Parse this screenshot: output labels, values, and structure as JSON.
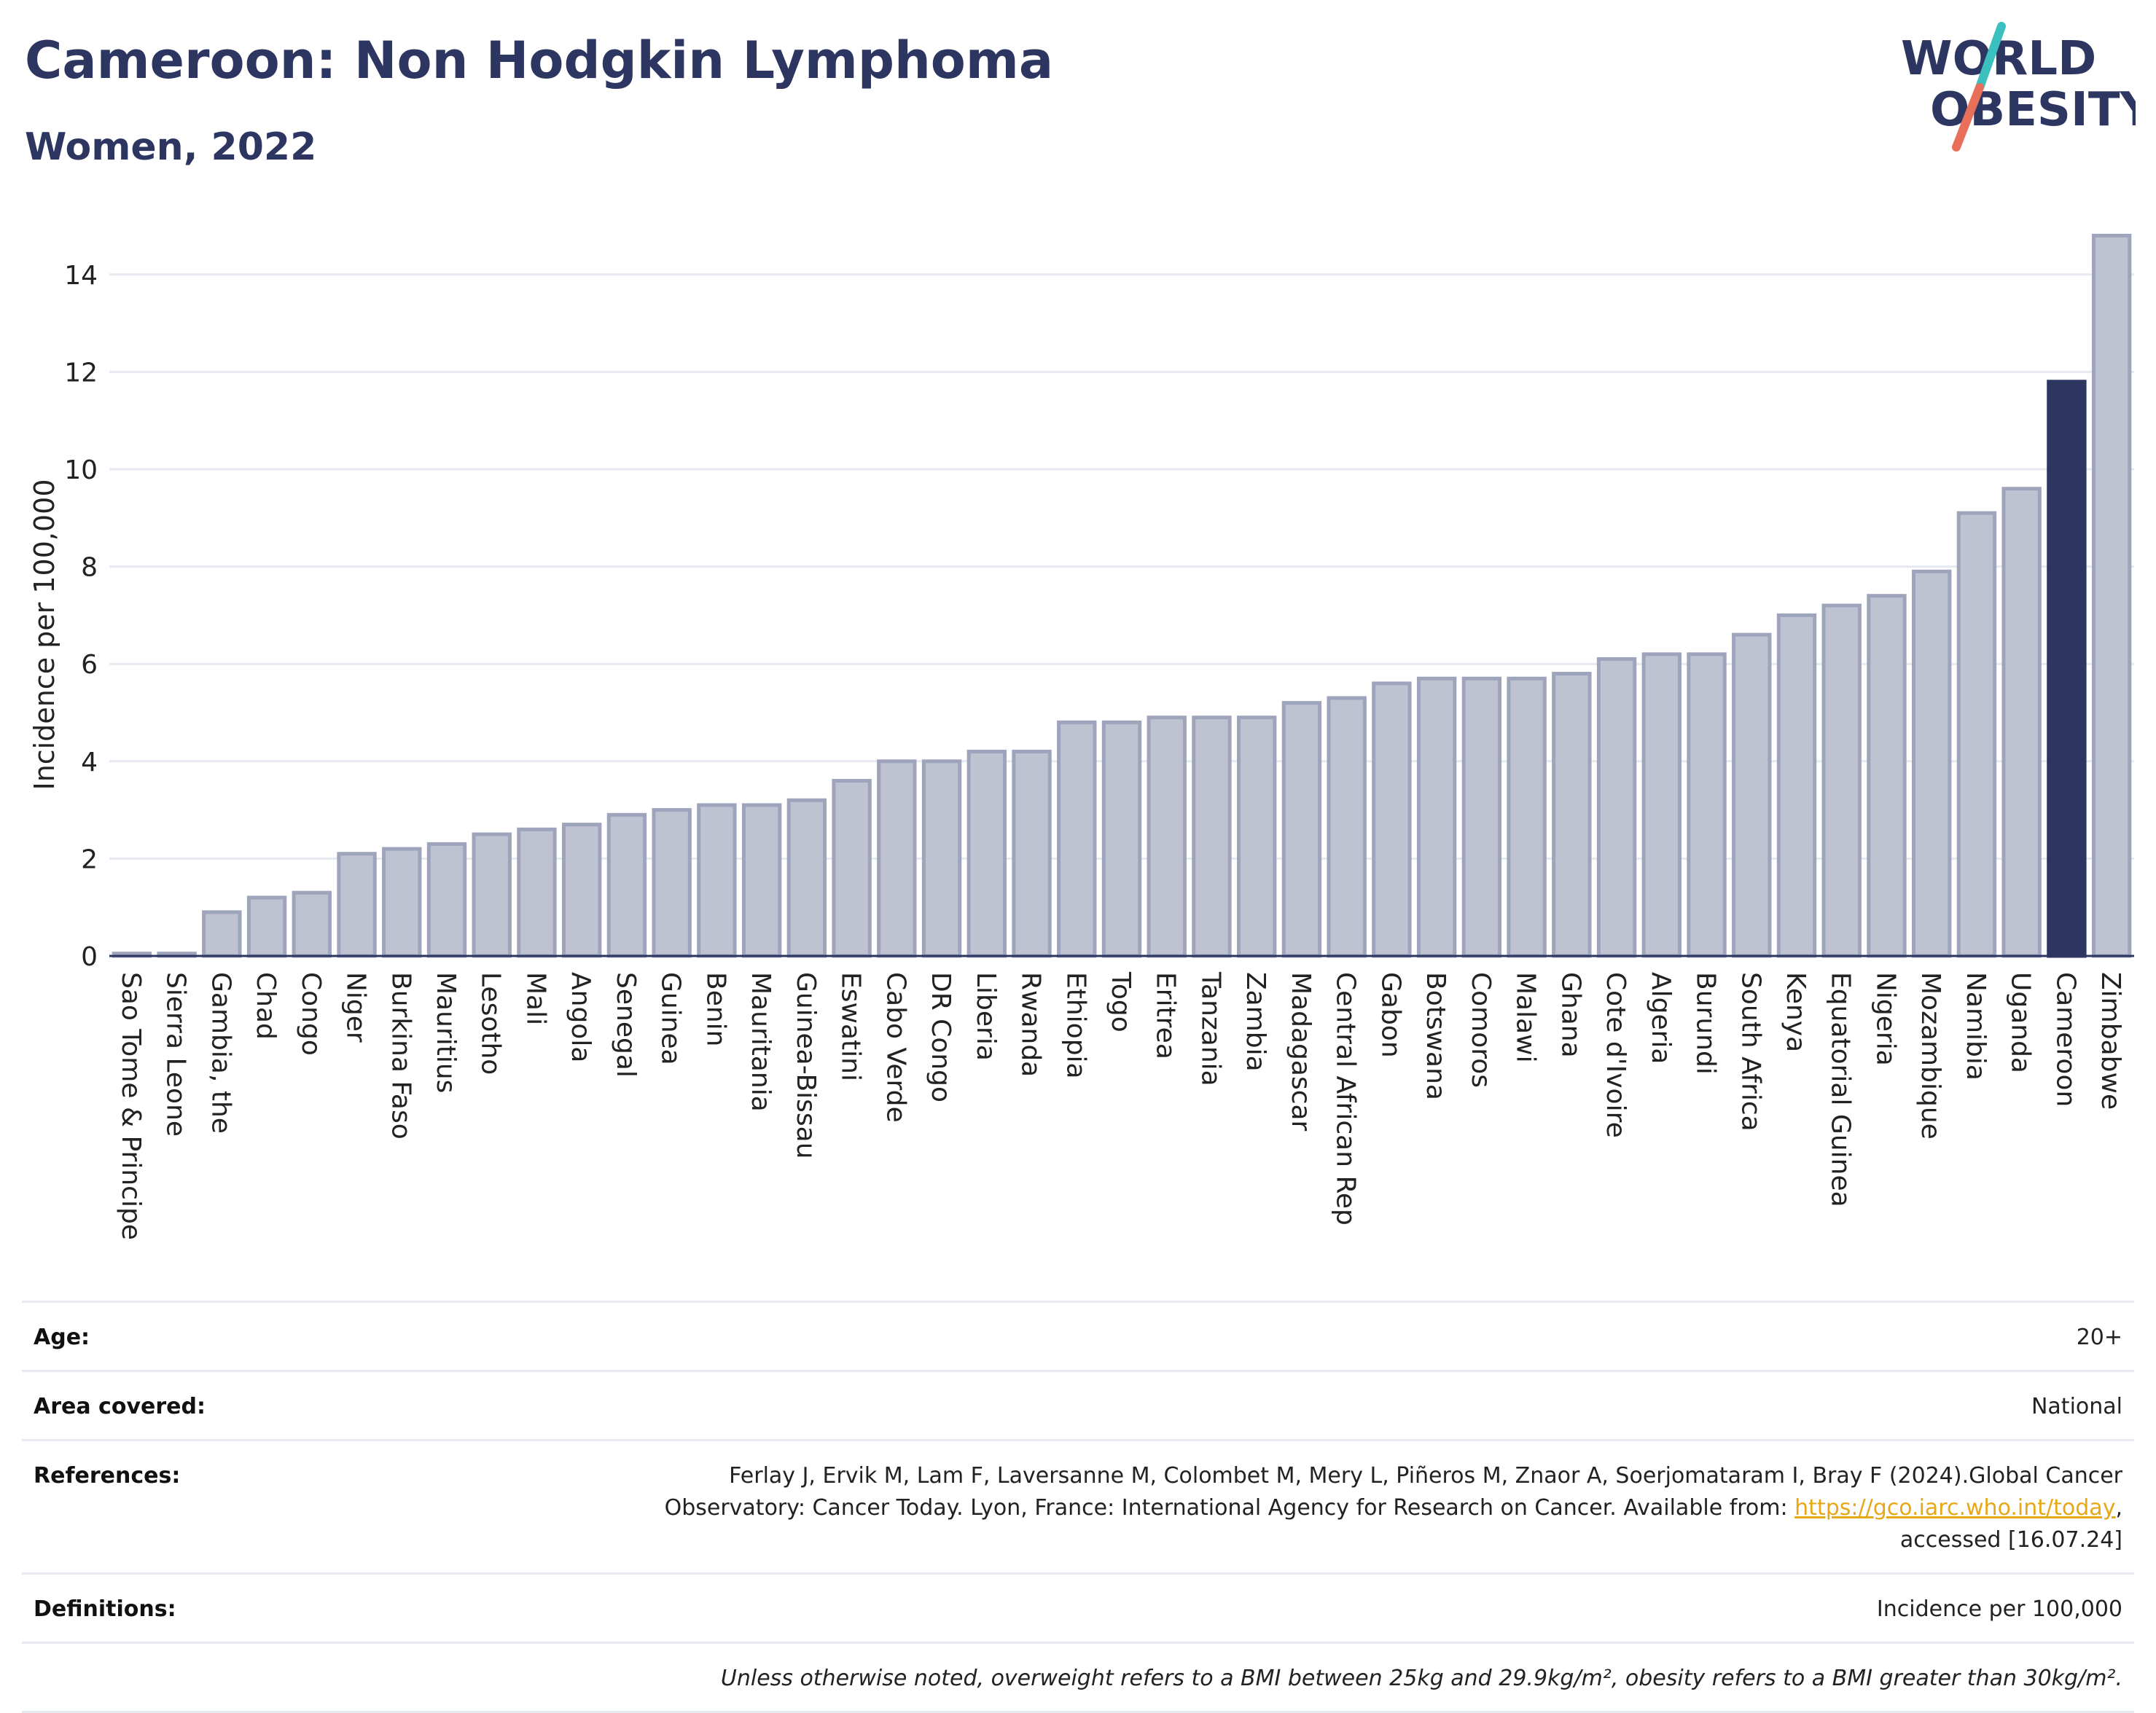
{
  "header": {
    "title": "Cameroon: Non Hodgkin Lymphoma",
    "subtitle": "Women, 2022"
  },
  "logo": {
    "line1": "WORLD",
    "line2": "OBESITY",
    "colors": {
      "text": "#2d3561",
      "slash_teal": "#3bbfbf",
      "slash_coral": "#e8705a"
    }
  },
  "colors": {
    "bar": "#bfc3d1",
    "bar_stroke": "#9ea4bb",
    "highlight": "#2d3561",
    "grid": "#e6e9f0",
    "axis": "#2d3561"
  },
  "chart_data": {
    "type": "bar",
    "title": "",
    "xlabel": "",
    "ylabel": "Incidence per 100,000",
    "ylim": [
      0,
      15
    ],
    "yticks": [
      0,
      2,
      4,
      6,
      8,
      10,
      12,
      14
    ],
    "grid": true,
    "highlight": "Cameroon",
    "categories": [
      "Sao Tome & Principe",
      "Sierra Leone",
      "Gambia, the",
      "Chad",
      "Congo",
      "Niger",
      "Burkina Faso",
      "Mauritius",
      "Lesotho",
      "Mali",
      "Angola",
      "Senegal",
      "Guinea",
      "Benin",
      "Mauritania",
      "Guinea-Bissau",
      "Eswatini",
      "Cabo Verde",
      "DR Congo",
      "Liberia",
      "Rwanda",
      "Ethiopia",
      "Togo",
      "Eritrea",
      "Tanzania",
      "Zambia",
      "Madagascar",
      "Central African Rep",
      "Gabon",
      "Botswana",
      "Comoros",
      "Malawi",
      "Ghana",
      "Cote d'Ivoire",
      "Algeria",
      "Burundi",
      "South Africa",
      "Kenya",
      "Equatorial Guinea",
      "Nigeria",
      "Mozambique",
      "Namibia",
      "Uganda",
      "Cameroon",
      "Zimbabwe"
    ],
    "values": [
      0.05,
      0.05,
      0.9,
      1.2,
      1.3,
      2.1,
      2.2,
      2.3,
      2.5,
      2.6,
      2.7,
      2.9,
      3.0,
      3.1,
      3.1,
      3.2,
      3.6,
      4.0,
      4.0,
      4.2,
      4.2,
      4.8,
      4.8,
      4.9,
      4.9,
      4.9,
      5.2,
      5.3,
      5.6,
      5.7,
      5.7,
      5.7,
      5.8,
      6.1,
      6.2,
      6.2,
      6.6,
      7.0,
      7.2,
      7.4,
      7.9,
      9.1,
      9.6,
      11.8,
      14.8
    ]
  },
  "info": {
    "age_label": "Age:",
    "age_value": "20+",
    "area_label": "Area covered:",
    "area_value": "National",
    "references_label": "References:",
    "references_text1": "Ferlay J, Ervik M, Lam F, Laversanne M, Colombet M, Mery L, Piñeros M, Znaor A, Soerjomataram I, Bray F (2024).Global Cancer",
    "references_text2": "Observatory: Cancer Today. Lyon, France: International Agency for Research on Cancer. Available from: ",
    "references_link": "https://gco.iarc.who.int/today",
    "references_text3": ",",
    "references_text4": "accessed [16.07.24]",
    "definitions_label": "Definitions:",
    "definitions_value": "Incidence per 100,000",
    "note": "Unless otherwise noted, overweight refers to a BMI between 25kg and 29.9kg/m², obesity refers to a BMI greater than 30kg/m²."
  }
}
